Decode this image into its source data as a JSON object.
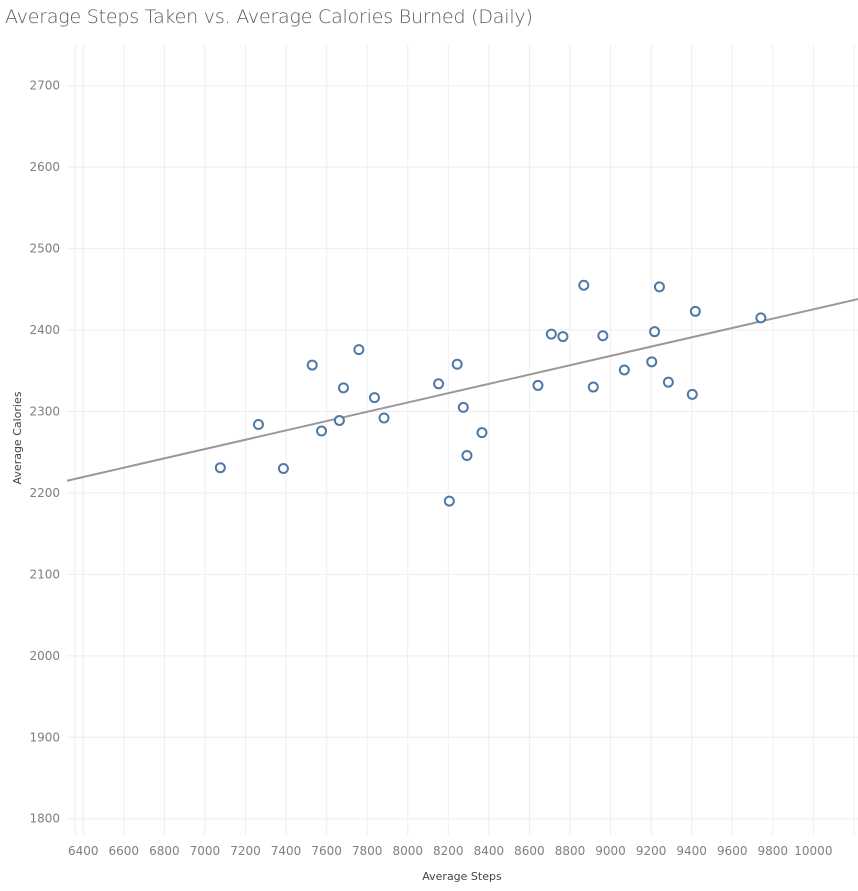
{
  "chart_data": {
    "type": "scatter",
    "title": "Average Steps Taken vs.  Average Calories Burned (Daily)",
    "xlabel": "Average Steps",
    "ylabel": "Average Calories",
    "xlim": [
      6320,
      10220
    ],
    "ylim": [
      1780,
      2750
    ],
    "x_ticks": [
      6400,
      6600,
      6800,
      7000,
      7200,
      7400,
      7600,
      7800,
      8000,
      8200,
      8400,
      8600,
      8800,
      9000,
      9200,
      9400,
      9600,
      9800,
      10000
    ],
    "y_ticks": [
      1800,
      1900,
      2000,
      2100,
      2200,
      2300,
      2400,
      2500,
      2600,
      2700
    ],
    "grid": true,
    "point_color": "#4e79a7",
    "trend_color": "#999999",
    "trend_line": {
      "x": [
        6320,
        10220
      ],
      "y": [
        2215,
        2438
      ]
    },
    "points": [
      {
        "x": 7076,
        "y": 2231
      },
      {
        "x": 7264,
        "y": 2284
      },
      {
        "x": 7387,
        "y": 2230
      },
      {
        "x": 7529,
        "y": 2357
      },
      {
        "x": 7575,
        "y": 2276
      },
      {
        "x": 7663,
        "y": 2289
      },
      {
        "x": 7683,
        "y": 2329
      },
      {
        "x": 7759,
        "y": 2376
      },
      {
        "x": 7836,
        "y": 2317
      },
      {
        "x": 7883,
        "y": 2292
      },
      {
        "x": 8152,
        "y": 2334
      },
      {
        "x": 8205,
        "y": 2190
      },
      {
        "x": 8244,
        "y": 2358
      },
      {
        "x": 8274,
        "y": 2305
      },
      {
        "x": 8292,
        "y": 2246
      },
      {
        "x": 8366,
        "y": 2274
      },
      {
        "x": 8642,
        "y": 2332
      },
      {
        "x": 8708,
        "y": 2395
      },
      {
        "x": 8765,
        "y": 2392
      },
      {
        "x": 8868,
        "y": 2455
      },
      {
        "x": 8915,
        "y": 2330
      },
      {
        "x": 8962,
        "y": 2393
      },
      {
        "x": 9068,
        "y": 2351
      },
      {
        "x": 9203,
        "y": 2361
      },
      {
        "x": 9217,
        "y": 2398
      },
      {
        "x": 9241,
        "y": 2453
      },
      {
        "x": 9285,
        "y": 2336
      },
      {
        "x": 9403,
        "y": 2321
      },
      {
        "x": 9418,
        "y": 2423
      },
      {
        "x": 9741,
        "y": 2415
      }
    ]
  }
}
